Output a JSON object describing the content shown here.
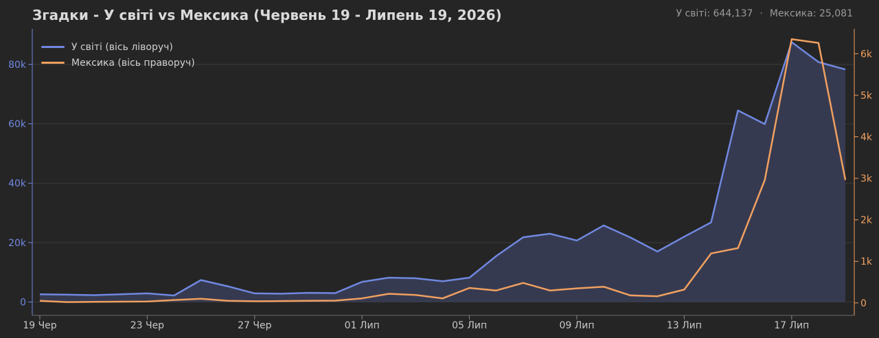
{
  "header": {
    "title": "Згадки - У світі vs Мексика (Червень 19 - Липень 19, 2026)",
    "total_world": "У світі: 644,137",
    "separator": "·",
    "total_mexico": "Мексика: 25,081"
  },
  "colors": {
    "world": "#7088e0",
    "mexico": "#f0a060",
    "area": "#3a3e58",
    "grid": "#3a3a3a",
    "tick_text": "#c8c8c8"
  },
  "chart_data": {
    "type": "line",
    "title": "Згадки - У світі vs Мексика (Червень 19 - Липень 19, 2026)",
    "x": [
      "2026-06-19",
      "2026-06-20",
      "2026-06-21",
      "2026-06-22",
      "2026-06-23",
      "2026-06-24",
      "2026-06-25",
      "2026-06-26",
      "2026-06-27",
      "2026-06-28",
      "2026-06-29",
      "2026-06-30",
      "2026-07-01",
      "2026-07-02",
      "2026-07-03",
      "2026-07-04",
      "2026-07-05",
      "2026-07-06",
      "2026-07-07",
      "2026-07-08",
      "2026-07-09",
      "2026-07-10",
      "2026-07-11",
      "2026-07-12",
      "2026-07-13",
      "2026-07-14",
      "2026-07-15",
      "2026-07-16",
      "2026-07-17",
      "2026-07-18",
      "2026-07-19"
    ],
    "x_tick_labels": [
      "19 Чер",
      "23 Чер",
      "27 Чер",
      "01 Лип",
      "05 Лип",
      "09 Лип",
      "13 Лип",
      "17 Лип"
    ],
    "x_tick_indices": [
      0,
      4,
      8,
      12,
      16,
      20,
      24,
      28
    ],
    "series": [
      {
        "name": "У світі (вісь ліворуч)",
        "axis": "left",
        "fill": true,
        "values": [
          2600,
          2500,
          2300,
          2600,
          2900,
          2200,
          7400,
          5300,
          2900,
          2800,
          3100,
          3000,
          6800,
          8200,
          8000,
          7000,
          8200,
          15500,
          21800,
          23000,
          20700,
          25800,
          21700,
          17000,
          22000,
          26800,
          64500,
          59900,
          87500,
          80800,
          78300
        ]
      },
      {
        "name": "Мексика (вісь праворуч)",
        "axis": "right",
        "fill": false,
        "values": [
          50,
          20,
          25,
          30,
          35,
          70,
          100,
          50,
          40,
          45,
          50,
          55,
          110,
          220,
          190,
          110,
          360,
          300,
          480,
          300,
          350,
          390,
          180,
          160,
          320,
          1190,
          1320,
          2960,
          6350,
          6260,
          2960
        ]
      }
    ],
    "y_left": {
      "ticks": [
        0,
        20000,
        40000,
        60000,
        80000
      ],
      "tick_labels": [
        "0",
        "20k",
        "40k",
        "60k",
        "80k"
      ],
      "lim": [
        -4500,
        92000
      ]
    },
    "y_right": {
      "ticks": [
        0,
        1000,
        2000,
        3000,
        4000,
        5000,
        6000
      ],
      "tick_labels": [
        "0",
        "1k",
        "2k",
        "3k",
        "4k",
        "5k",
        "6k"
      ],
      "lim": [
        -300,
        6600
      ]
    },
    "grid": true,
    "legend": "top-left"
  }
}
